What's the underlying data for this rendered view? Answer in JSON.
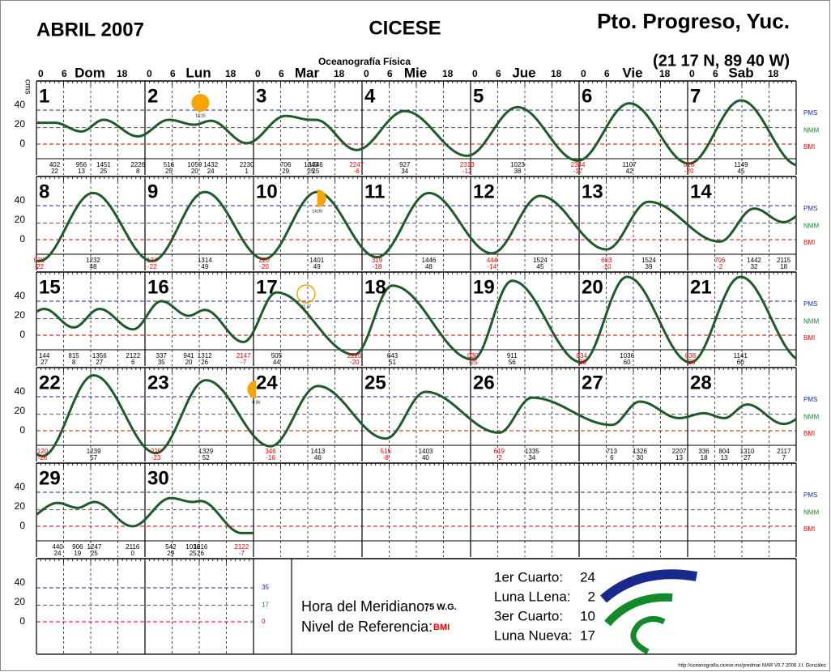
{
  "header": {
    "month": "ABRIL 2007",
    "institution": "CICESE",
    "department": "Oceanografía Física",
    "station": "Pto. Progreso, Yuc.",
    "coordinates": "(21 17 N,  89 40 W)",
    "unit": "cms"
  },
  "weekdays": [
    "Dom",
    "Lun",
    "Mar",
    "Mie",
    "Jue",
    "Vie",
    "Sab"
  ],
  "hour_ticks": [
    "0",
    "6",
    "18"
  ],
  "y_labels": [
    "40",
    "20",
    "0"
  ],
  "levels": [
    "PMS",
    "NMM",
    "BMI"
  ],
  "days": [
    {
      "day": "1",
      "tides": [
        {
          "time": "402",
          "height": 22
        },
        {
          "time": "956",
          "height": 13
        },
        {
          "time": "1451",
          "height": 25
        },
        {
          "time": "2226",
          "height": 8
        }
      ]
    },
    {
      "day": "2",
      "tides": [
        {
          "time": "516",
          "height": 25
        },
        {
          "time": "1059",
          "height": 20
        },
        {
          "time": "1432",
          "height": 24
        },
        {
          "time": "2230",
          "height": 1
        }
      ]
    },
    {
      "day": "3",
      "tides": [
        {
          "time": "706",
          "height": 29
        },
        {
          "time": "1243",
          "height": 25
        },
        {
          "time": "1346",
          "height": 25
        },
        {
          "time": "2247",
          "height": -6
        }
      ]
    },
    {
      "day": "4",
      "tides": [
        {
          "time": "927",
          "height": 34
        },
        {
          "time": "2313",
          "height": -12
        }
      ]
    },
    {
      "day": "5",
      "tides": [
        {
          "time": "1023",
          "height": 38
        },
        {
          "time": "2344",
          "height": -17
        }
      ]
    },
    {
      "day": "6",
      "tides": [
        {
          "time": "1107",
          "height": 42
        }
      ]
    },
    {
      "day": "7",
      "tides": [
        {
          "time": "018",
          "height": -20
        },
        {
          "time": "1149",
          "height": 45
        }
      ]
    },
    {
      "day": "8",
      "tides": [
        {
          "time": "036",
          "height": -22
        },
        {
          "time": "1232",
          "height": 48
        }
      ]
    },
    {
      "day": "9",
      "tides": [
        {
          "time": "134",
          "height": -22
        },
        {
          "time": "1314",
          "height": 49
        }
      ]
    },
    {
      "day": "10",
      "tides": [
        {
          "time": "220",
          "height": -20
        },
        {
          "time": "1401",
          "height": 49
        }
      ]
    },
    {
      "day": "11",
      "tides": [
        {
          "time": "319",
          "height": -18
        },
        {
          "time": "1446",
          "height": 48
        }
      ]
    },
    {
      "day": "12",
      "tides": [
        {
          "time": "444",
          "height": -14
        },
        {
          "time": "1524",
          "height": 45
        }
      ]
    },
    {
      "day": "13",
      "tides": [
        {
          "time": "603",
          "height": -10
        },
        {
          "time": "1524",
          "height": 39
        }
      ]
    },
    {
      "day": "14",
      "tides": [
        {
          "time": "706",
          "height": -2
        },
        {
          "time": "1442",
          "height": 32
        },
        {
          "time": "2115",
          "height": 18
        }
      ]
    },
    {
      "day": "15",
      "tides": [
        {
          "time": "144",
          "height": 27
        },
        {
          "time": "815",
          "height": 8
        },
        {
          "time": "1356",
          "height": 27
        },
        {
          "time": "2122",
          "height": 6
        }
      ]
    },
    {
      "day": "16",
      "tides": [
        {
          "time": "337",
          "height": 35
        },
        {
          "time": "941",
          "height": 20
        },
        {
          "time": "1312",
          "height": 26
        },
        {
          "time": "2147",
          "height": -7
        }
      ]
    },
    {
      "day": "17",
      "tides": [
        {
          "time": "505",
          "height": 44
        },
        {
          "time": "2220",
          "height": -20
        }
      ]
    },
    {
      "day": "18",
      "tides": [
        {
          "time": "643",
          "height": 51
        }
      ]
    },
    {
      "day": "19",
      "tides": [
        {
          "time": "030",
          "height": -25
        },
        {
          "time": "911",
          "height": 56
        }
      ]
    },
    {
      "day": "20",
      "tides": [
        {
          "time": "034",
          "height": -28
        },
        {
          "time": "1036",
          "height": 60
        }
      ]
    },
    {
      "day": "21",
      "tides": [
        {
          "time": "038",
          "height": -28
        },
        {
          "time": "1141",
          "height": 60
        }
      ]
    },
    {
      "day": "22",
      "tides": [
        {
          "time": "120",
          "height": -26
        },
        {
          "time": "1239",
          "height": 57
        }
      ]
    },
    {
      "day": "23",
      "tides": [
        {
          "time": "225",
          "height": -23
        },
        {
          "time": "1329",
          "height": 52
        }
      ]
    },
    {
      "day": "24",
      "tides": [
        {
          "time": "346",
          "height": -16
        },
        {
          "time": "1413",
          "height": 46
        }
      ]
    },
    {
      "day": "25",
      "tides": [
        {
          "time": "515",
          "height": -8
        },
        {
          "time": "1403",
          "height": 40
        }
      ]
    },
    {
      "day": "26",
      "tides": [
        {
          "time": "619",
          "height": -2
        },
        {
          "time": "1335",
          "height": 34
        }
      ]
    },
    {
      "day": "27",
      "tides": [
        {
          "time": "713",
          "height": 6
        },
        {
          "time": "1326",
          "height": 30
        },
        {
          "time": "2207",
          "height": 13
        }
      ]
    },
    {
      "day": "28",
      "tides": [
        {
          "time": "336",
          "height": 18
        },
        {
          "time": "804",
          "height": 13
        },
        {
          "time": "1310",
          "height": 27
        },
        {
          "time": "2117",
          "height": 7
        }
      ]
    },
    {
      "day": "29",
      "tides": [
        {
          "time": "440",
          "height": 24
        },
        {
          "time": "906",
          "height": 19
        },
        {
          "time": "1247",
          "height": 25
        },
        {
          "time": "2116",
          "height": 0
        }
      ]
    },
    {
      "day": "30",
      "tides": [
        {
          "time": "542",
          "height": 29
        },
        {
          "time": "1036",
          "height": 25
        },
        {
          "time": "1216",
          "height": 26
        },
        {
          "time": "2122",
          "height": -7
        }
      ]
    }
  ],
  "moon_icons": [
    {
      "day": 2,
      "kind": "full",
      "time": "12:15"
    },
    {
      "day": 10,
      "kind": "third",
      "time": "14:05"
    },
    {
      "day": 17,
      "kind": "new",
      "time": "11:37"
    },
    {
      "day": 24,
      "kind": "first",
      "time": "0:36"
    }
  ],
  "legend": {
    "meridian_label": "Hora del Meridiano:",
    "meridian": "75 W.G.",
    "reference_label": "Nivel de Referencia:",
    "reference": "BMI",
    "level_values": [
      "35",
      "17",
      "0"
    ],
    "phases": [
      {
        "label": "1er Cuarto:",
        "day": "24"
      },
      {
        "label": "Luna LLena:",
        "day": "2"
      },
      {
        "label": "3er Cuarto:",
        "day": "10"
      },
      {
        "label": "Luna Nueva:",
        "day": "17"
      }
    ]
  },
  "footer": "http://oceanografia.cicese.mx/predmar  MAR V0.7 2006 J.I. González"
}
